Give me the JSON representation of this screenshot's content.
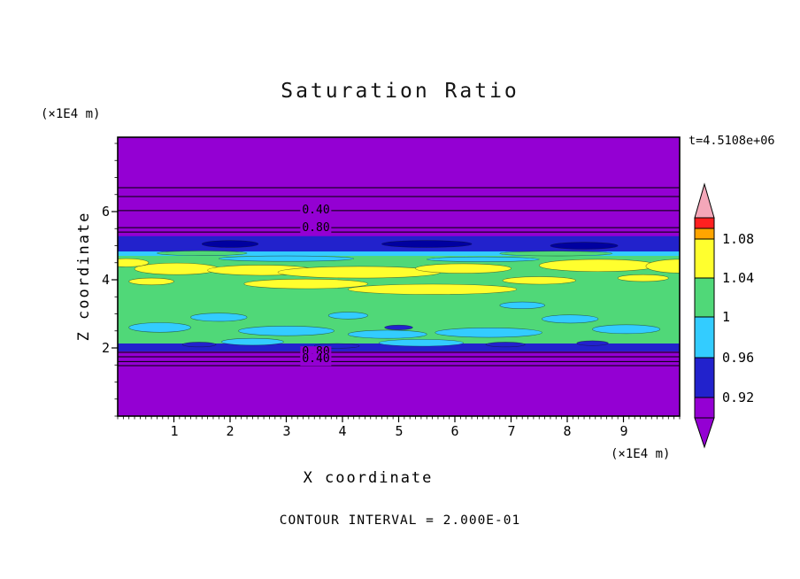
{
  "title": "Saturation Ratio",
  "time_label": "t=4.5108e+06",
  "footer": "CONTOUR INTERVAL = 2.000E-01",
  "x_axis": {
    "label": "X coordinate",
    "unit": "(×1E4 m)",
    "ticks": [
      "1",
      "2",
      "3",
      "4",
      "5",
      "6",
      "7",
      "8",
      "9"
    ]
  },
  "z_axis": {
    "label": "Z coordinate",
    "unit": "(×1E4 m)",
    "ticks": [
      "6",
      "4",
      "2"
    ]
  },
  "colorbar": {
    "labels": [
      "1.08",
      "1.04",
      "1",
      "0.96",
      "0.92"
    ]
  },
  "contour_labels": [
    {
      "text": "0.40"
    },
    {
      "text": "0.80"
    },
    {
      "text": "0.80"
    },
    {
      "text": "0.40"
    }
  ],
  "colors": {
    "purple": "#9400D3",
    "blue": "#2222CC",
    "navy": "#0000A0",
    "cyan": "#33CCFF",
    "green": "#50D878",
    "yellow": "#FFFF2E",
    "orange": "#FFA500",
    "red": "#FF2020",
    "pink": "#F4A7B9"
  },
  "chart_data": {
    "type": "heatmap",
    "title": "Saturation Ratio",
    "xlabel": "X coordinate",
    "ylabel": "Z coordinate",
    "x_unit": "(×1E4 m)",
    "z_unit": "(×1E4 m)",
    "xlim": [
      0,
      10
    ],
    "zlim": [
      0,
      8.18
    ],
    "x_ticks": [
      1,
      2,
      3,
      4,
      5,
      6,
      7,
      8,
      9
    ],
    "z_ticks": [
      2,
      4,
      6
    ],
    "time": "t=4.5108e+06",
    "contour_interval": 0.2,
    "colorbar_values": [
      1.08,
      1.04,
      1.0,
      0.96,
      0.92
    ],
    "color_scale": [
      {
        "min": null,
        "max": 0.92,
        "color": "purple"
      },
      {
        "min": 0.92,
        "max": 0.96,
        "color": "blue"
      },
      {
        "min": 0.96,
        "max": 1.0,
        "color": "cyan"
      },
      {
        "min": 1.0,
        "max": 1.04,
        "color": "green"
      },
      {
        "min": 1.04,
        "max": 1.08,
        "color": "yellow"
      },
      {
        "min": 1.08,
        "max": 1.12,
        "color": "orange"
      },
      {
        "min": 1.12,
        "max": 1.16,
        "color": "red"
      },
      {
        "min": 1.16,
        "max": null,
        "color": "pink"
      }
    ],
    "bands": [
      {
        "z0": 2.03,
        "z1": 4.83,
        "color": "green"
      },
      {
        "z0": 4.7,
        "z1": 4.88,
        "color": "cyan"
      },
      {
        "z0": 4.83,
        "z1": 5.28,
        "color": "blue"
      },
      {
        "z0": 1.9,
        "z1": 2.13,
        "color": "blue"
      }
    ],
    "blobs": [
      {
        "x": 1.05,
        "z": 4.32,
        "rx": 0.75,
        "rz": 0.17,
        "color": "yellow"
      },
      {
        "x": 2.55,
        "z": 4.28,
        "rx": 0.95,
        "rz": 0.15,
        "color": "yellow"
      },
      {
        "x": 4.3,
        "z": 4.22,
        "rx": 1.45,
        "rz": 0.17,
        "color": "yellow"
      },
      {
        "x": 6.15,
        "z": 4.33,
        "rx": 0.85,
        "rz": 0.14,
        "color": "yellow"
      },
      {
        "x": 8.55,
        "z": 4.42,
        "rx": 1.05,
        "rz": 0.18,
        "color": "yellow"
      },
      {
        "x": 3.35,
        "z": 3.88,
        "rx": 1.1,
        "rz": 0.14,
        "color": "yellow"
      },
      {
        "x": 5.6,
        "z": 3.72,
        "rx": 1.5,
        "rz": 0.15,
        "color": "yellow"
      },
      {
        "x": 7.5,
        "z": 3.98,
        "rx": 0.65,
        "rz": 0.11,
        "color": "yellow"
      },
      {
        "x": 9.35,
        "z": 4.05,
        "rx": 0.45,
        "rz": 0.1,
        "color": "yellow"
      },
      {
        "x": 0.6,
        "z": 3.95,
        "rx": 0.4,
        "rz": 0.1,
        "color": "yellow"
      },
      {
        "x": 0.15,
        "z": 4.5,
        "rx": 0.4,
        "rz": 0.12,
        "color": "yellow"
      },
      {
        "x": 10.0,
        "z": 4.4,
        "rx": 0.6,
        "rz": 0.2,
        "color": "yellow"
      },
      {
        "x": 1.5,
        "z": 4.78,
        "rx": 0.8,
        "rz": 0.07,
        "color": "green"
      },
      {
        "x": 7.8,
        "z": 4.77,
        "rx": 1.0,
        "rz": 0.07,
        "color": "green"
      },
      {
        "x": 0.75,
        "z": 2.6,
        "rx": 0.55,
        "rz": 0.14,
        "color": "cyan"
      },
      {
        "x": 1.8,
        "z": 2.9,
        "rx": 0.5,
        "rz": 0.12,
        "color": "cyan"
      },
      {
        "x": 3.0,
        "z": 2.5,
        "rx": 0.85,
        "rz": 0.14,
        "color": "cyan"
      },
      {
        "x": 4.8,
        "z": 2.4,
        "rx": 0.7,
        "rz": 0.12,
        "color": "cyan"
      },
      {
        "x": 6.6,
        "z": 2.45,
        "rx": 0.95,
        "rz": 0.14,
        "color": "cyan"
      },
      {
        "x": 8.05,
        "z": 2.85,
        "rx": 0.5,
        "rz": 0.12,
        "color": "cyan"
      },
      {
        "x": 7.2,
        "z": 3.25,
        "rx": 0.4,
        "rz": 0.1,
        "color": "cyan"
      },
      {
        "x": 2.4,
        "z": 2.18,
        "rx": 0.55,
        "rz": 0.1,
        "color": "cyan"
      },
      {
        "x": 5.4,
        "z": 2.15,
        "rx": 0.75,
        "rz": 0.1,
        "color": "cyan"
      },
      {
        "x": 9.05,
        "z": 2.55,
        "rx": 0.6,
        "rz": 0.13,
        "color": "cyan"
      },
      {
        "x": 4.1,
        "z": 2.95,
        "rx": 0.35,
        "rz": 0.1,
        "color": "cyan"
      },
      {
        "x": 3.0,
        "z": 4.62,
        "rx": 1.2,
        "rz": 0.08,
        "color": "cyan"
      },
      {
        "x": 6.5,
        "z": 4.6,
        "rx": 1.0,
        "rz": 0.07,
        "color": "cyan"
      },
      {
        "x": 2.0,
        "z": 5.05,
        "rx": 0.5,
        "rz": 0.1,
        "color": "navy"
      },
      {
        "x": 5.5,
        "z": 5.05,
        "rx": 0.8,
        "rz": 0.1,
        "color": "navy"
      },
      {
        "x": 8.3,
        "z": 5.0,
        "rx": 0.6,
        "rz": 0.1,
        "color": "navy"
      },
      {
        "x": 1.45,
        "z": 2.1,
        "rx": 0.3,
        "rz": 0.07,
        "color": "blue"
      },
      {
        "x": 3.9,
        "z": 2.06,
        "rx": 0.4,
        "rz": 0.07,
        "color": "blue"
      },
      {
        "x": 6.9,
        "z": 2.1,
        "rx": 0.35,
        "rz": 0.07,
        "color": "blue"
      },
      {
        "x": 8.45,
        "z": 2.14,
        "rx": 0.28,
        "rz": 0.07,
        "color": "blue"
      },
      {
        "x": 5.0,
        "z": 2.6,
        "rx": 0.25,
        "rz": 0.07,
        "color": "blue"
      }
    ],
    "contour_lines_z": [
      6.7,
      6.44,
      6.03,
      5.53,
      5.4,
      1.87,
      1.74,
      1.6,
      1.48
    ],
    "contour_line_labels": [
      {
        "value": 0.4,
        "x": 3.5,
        "z": 6.03
      },
      {
        "value": 0.8,
        "x": 3.5,
        "z": 5.53
      },
      {
        "value": 0.8,
        "x": 3.5,
        "z": 1.87
      },
      {
        "value": 0.4,
        "x": 3.5,
        "z": 1.71
      }
    ]
  }
}
